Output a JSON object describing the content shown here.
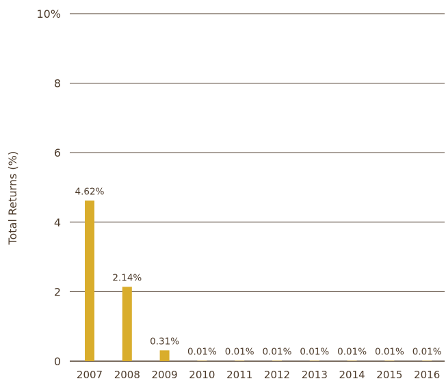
{
  "chart_data": {
    "type": "bar",
    "categories": [
      "2007",
      "2008",
      "2009",
      "2010",
      "2011",
      "2012",
      "2013",
      "2014",
      "2015",
      "2016"
    ],
    "values": [
      4.62,
      2.14,
      0.31,
      0.01,
      0.01,
      0.01,
      0.01,
      0.01,
      0.01,
      0.01
    ],
    "data_labels": [
      "4.62%",
      "2.14%",
      "0.31%",
      "0.01%",
      "0.01%",
      "0.01%",
      "0.01%",
      "0.01%",
      "0.01%",
      "0.01%"
    ],
    "title": "",
    "xlabel": "",
    "ylabel": "Total Returns (%)",
    "ylim": [
      0,
      10
    ],
    "yticks": [
      0,
      2,
      4,
      6,
      8,
      10
    ],
    "ytick_labels": [
      "0",
      "2",
      "4",
      "6",
      "8",
      "10%"
    ],
    "grid": true,
    "legend": "none",
    "colors": {
      "bar": "#d9ad2c",
      "grid": "#4d3b2b",
      "text": "#4d3b2b"
    }
  }
}
